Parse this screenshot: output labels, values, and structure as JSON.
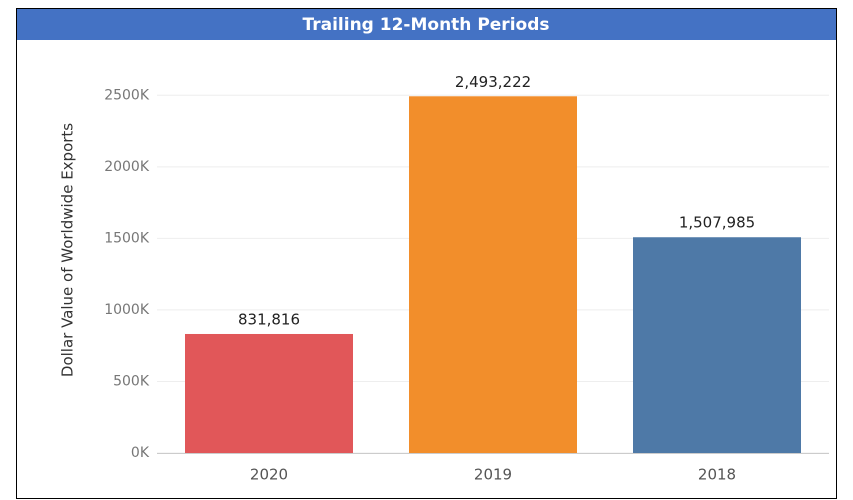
{
  "chart_data": {
    "type": "bar",
    "title": "Trailing 12-Month Periods",
    "y_label": "Dollar Value of Worldwide Exports",
    "categories": [
      "2020",
      "2019",
      "2018"
    ],
    "values": [
      831816,
      2493222,
      1507985
    ],
    "value_labels": [
      "831,816",
      "2,493,222",
      "1,507,985"
    ],
    "colors": [
      "#e15759",
      "#f28e2b",
      "#4e79a7"
    ],
    "ylim": [
      0,
      2600000
    ],
    "yticks": [
      {
        "value": 0,
        "label": "0K"
      },
      {
        "value": 500000,
        "label": "500K"
      },
      {
        "value": 1000000,
        "label": "1000K"
      },
      {
        "value": 1500000,
        "label": "1500K"
      },
      {
        "value": 2000000,
        "label": "2000K"
      },
      {
        "value": 2500000,
        "label": "2500K"
      }
    ],
    "grid": true
  }
}
